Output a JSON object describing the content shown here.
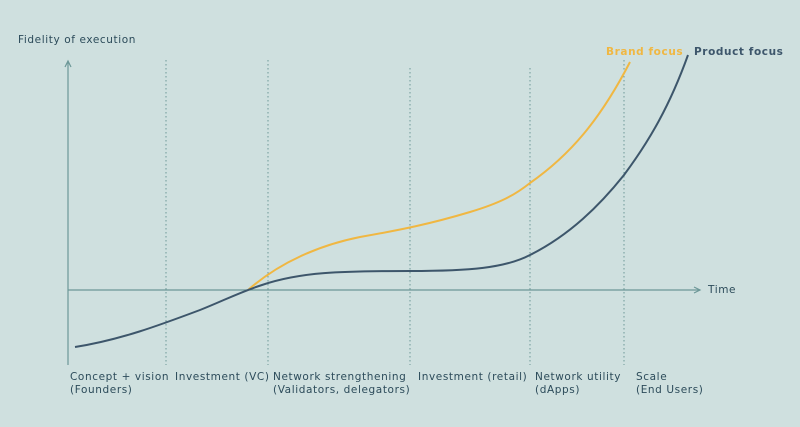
{
  "y_axis_label": "Fidelity of execution",
  "x_axis_label": "Time",
  "curves": [
    {
      "label": "Brand focus"
    },
    {
      "label": "Product focus"
    }
  ],
  "phases": [
    {
      "lines": [
        "Concept + vision",
        "(Founders)"
      ]
    },
    {
      "lines": [
        "Investment (VC)"
      ]
    },
    {
      "lines": [
        "Network strengthening",
        "(Validators, delegators)"
      ]
    },
    {
      "lines": [
        "Investment (retail)"
      ]
    },
    {
      "lines": [
        "Network utility",
        "(dApps)"
      ]
    },
    {
      "lines": [
        "Scale",
        "(End Users)"
      ]
    }
  ]
}
